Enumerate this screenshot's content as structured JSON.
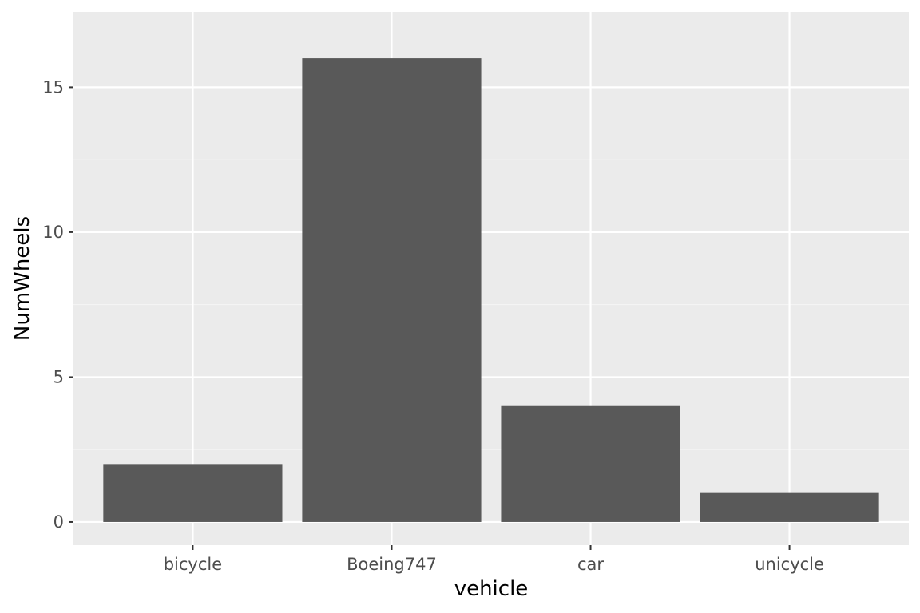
{
  "chart_data": {
    "type": "bar",
    "categories": [
      "bicycle",
      "Boeing747",
      "car",
      "unicycle"
    ],
    "values": [
      2,
      16,
      4,
      1
    ],
    "title": "",
    "xlabel": "vehicle",
    "ylabel": "NumWheels",
    "ylim": [
      -0.8,
      17.6
    ],
    "yticks": [
      0,
      5,
      10,
      15
    ],
    "grid": true,
    "legend": "none"
  },
  "colors": {
    "panel_background": "#ebebeb",
    "grid_major": "#ffffff",
    "grid_minor": "#f5f5f5",
    "bar_fill": "#595959",
    "tick_mark": "#333333",
    "tick_label": "#4d4d4d",
    "axis_title": "#000000"
  }
}
